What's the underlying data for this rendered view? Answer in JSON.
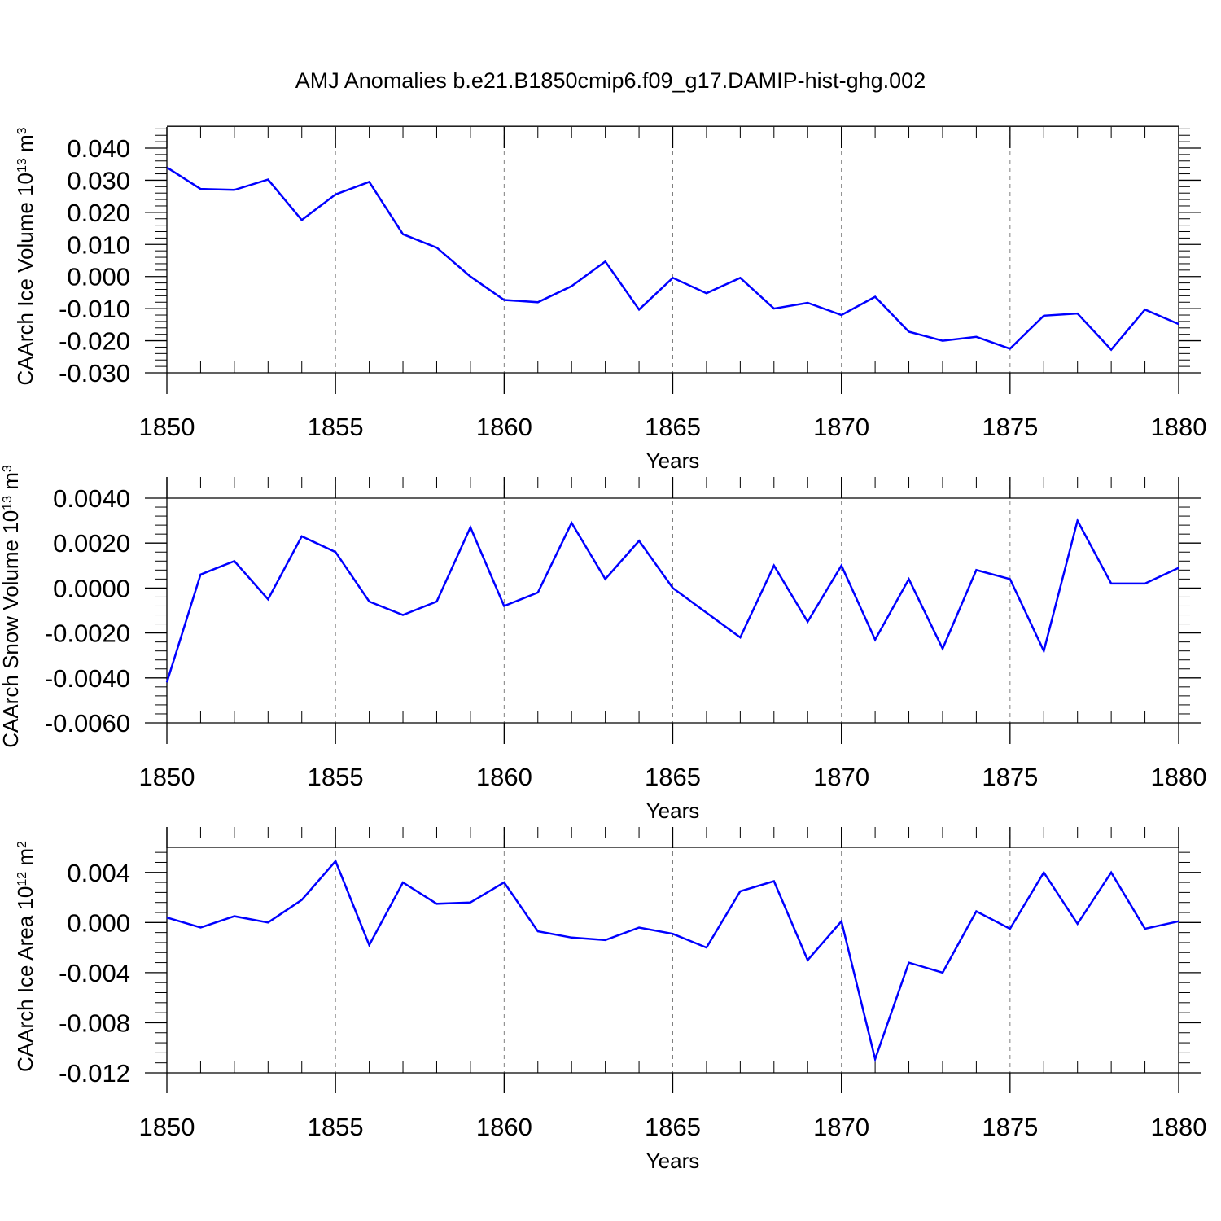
{
  "title": "AMJ Anomalies b.e21.B1850cmip6.f09_g17.DAMIP-hist-ghg.002",
  "colors": {
    "line": "#0000ff",
    "axis": "#000000",
    "grid": "#7f7f7f"
  },
  "chart_data": [
    {
      "type": "line",
      "ylabel": "CAArch Ice Volume",
      "ylabel_unit_base": "10",
      "ylabel_unit_exp": "13",
      "ylabel_unit_symbol": "m",
      "ylabel_unit_symbol_exp": "3",
      "xlabel": "Years",
      "xlim": [
        1850,
        1880
      ],
      "ylim": [
        -0.03,
        0.04
      ],
      "frame_top": 0.0468,
      "xticks": [
        "1850",
        "1855",
        "1860",
        "1865",
        "1870",
        "1875",
        "1880"
      ],
      "yticks": [
        {
          "v": 0.04,
          "label": "0.040"
        },
        {
          "v": 0.03,
          "label": "0.030"
        },
        {
          "v": 0.02,
          "label": "0.020"
        },
        {
          "v": 0.01,
          "label": "0.010"
        },
        {
          "v": 0.0,
          "label": "0.000"
        },
        {
          "v": -0.01,
          "label": "-0.010"
        },
        {
          "v": -0.02,
          "label": "-0.020"
        },
        {
          "v": -0.03,
          "label": "-0.030"
        }
      ],
      "grid": "dashed vertical at major x ticks",
      "series": [
        {
          "x": [
            1850,
            1851,
            1852,
            1853,
            1854,
            1855,
            1856,
            1857,
            1858,
            1859,
            1860,
            1861,
            1862,
            1863,
            1864,
            1865,
            1866,
            1867,
            1868,
            1869,
            1870,
            1871,
            1872,
            1873,
            1874,
            1875,
            1876,
            1877,
            1878,
            1879,
            1880
          ],
          "values": [
            0.034,
            0.0273,
            0.027,
            0.0302,
            0.0176,
            0.0256,
            0.0295,
            0.0132,
            0.009,
            0.0,
            -0.0073,
            -0.008,
            -0.003,
            0.0047,
            -0.0103,
            -0.0004,
            -0.0052,
            -0.0004,
            -0.01,
            -0.0082,
            -0.012,
            -0.0063,
            -0.0172,
            -0.02,
            -0.0188,
            -0.0225,
            -0.0122,
            -0.0115,
            -0.0228,
            -0.0103,
            -0.0148
          ]
        }
      ]
    },
    {
      "type": "line",
      "ylabel": "CAArch Snow Volume",
      "ylabel_unit_base": "10",
      "ylabel_unit_exp": "13",
      "ylabel_unit_symbol": "m",
      "ylabel_unit_symbol_exp": "3",
      "xlabel": "Years",
      "xlim": [
        1850,
        1880
      ],
      "ylim": [
        -0.006,
        0.004
      ],
      "frame_top": 0.004,
      "xticks": [
        "1850",
        "1855",
        "1860",
        "1865",
        "1870",
        "1875",
        "1880"
      ],
      "yticks": [
        {
          "v": 0.004,
          "label": "0.0040"
        },
        {
          "v": 0.002,
          "label": "0.0020"
        },
        {
          "v": 0.0,
          "label": "0.0000"
        },
        {
          "v": -0.002,
          "label": "-0.0020"
        },
        {
          "v": -0.004,
          "label": "-0.0040"
        },
        {
          "v": -0.006,
          "label": "-0.0060"
        }
      ],
      "grid": "dashed vertical at major x ticks",
      "series": [
        {
          "x": [
            1850,
            1851,
            1852,
            1853,
            1854,
            1855,
            1856,
            1857,
            1858,
            1859,
            1860,
            1861,
            1862,
            1863,
            1864,
            1865,
            1866,
            1867,
            1868,
            1869,
            1870,
            1871,
            1872,
            1873,
            1874,
            1875,
            1876,
            1877,
            1878,
            1879,
            1880
          ],
          "values": [
            -0.0042,
            0.0006,
            0.0012,
            -0.0005,
            0.0023,
            0.0016,
            -0.0006,
            -0.0012,
            -0.0006,
            0.0027,
            -0.0008,
            -0.0002,
            0.0029,
            0.0004,
            0.0021,
            0.0,
            -0.0011,
            -0.0022,
            0.001,
            -0.0015,
            0.001,
            -0.0023,
            0.0004,
            -0.0027,
            0.0008,
            0.0004,
            -0.0028,
            0.003,
            0.0002,
            0.0002,
            0.0009
          ]
        }
      ]
    },
    {
      "type": "line",
      "ylabel": "CAArch Ice Area",
      "ylabel_unit_base": "10",
      "ylabel_unit_exp": "12",
      "ylabel_unit_symbol": "m",
      "ylabel_unit_symbol_exp": "2",
      "xlabel": "Years",
      "xlim": [
        1850,
        1880
      ],
      "ylim": [
        -0.012,
        0.006
      ],
      "frame_top": 0.006,
      "xticks": [
        "1850",
        "1855",
        "1860",
        "1865",
        "1870",
        "1875",
        "1880"
      ],
      "yticks": [
        {
          "v": 0.004,
          "label": "0.004"
        },
        {
          "v": 0.0,
          "label": "0.000"
        },
        {
          "v": -0.004,
          "label": "-0.004"
        },
        {
          "v": -0.008,
          "label": "-0.008"
        },
        {
          "v": -0.012,
          "label": "-0.012"
        }
      ],
      "grid": "dashed vertical at major x ticks",
      "series": [
        {
          "x": [
            1850,
            1851,
            1852,
            1853,
            1854,
            1855,
            1856,
            1857,
            1858,
            1859,
            1860,
            1861,
            1862,
            1863,
            1864,
            1865,
            1866,
            1867,
            1868,
            1869,
            1870,
            1871,
            1872,
            1873,
            1874,
            1875,
            1876,
            1877,
            1878,
            1879,
            1880
          ],
          "values": [
            0.0004,
            -0.0004,
            0.0005,
            0.0,
            0.0018,
            0.0049,
            -0.0018,
            0.0032,
            0.0015,
            0.0016,
            0.0032,
            -0.0007,
            -0.0012,
            -0.0014,
            -0.0004,
            -0.0009,
            -0.002,
            0.0025,
            0.0033,
            -0.003,
            0.0001,
            -0.0109,
            -0.0032,
            -0.004,
            0.0009,
            -0.0005,
            0.004,
            -0.0001,
            0.004,
            -0.0005,
            0.0001
          ]
        }
      ]
    }
  ]
}
